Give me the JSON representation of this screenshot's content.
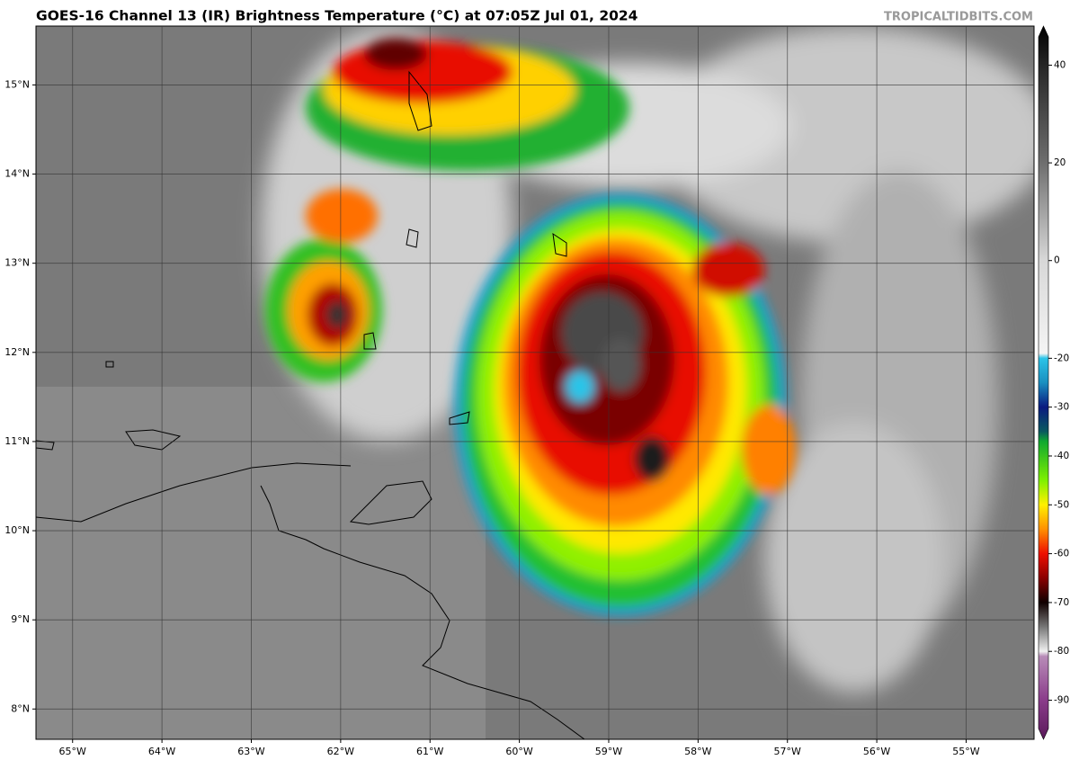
{
  "title": "GOES-16 Channel 13 (IR) Brightness Temperature (°C) at 07:05Z Jul 01, 2024",
  "watermark": "TROPICALTIDBITS.COM",
  "map": {
    "type": "map",
    "xlim": [
      -65.41,
      -54.24
    ],
    "ylim": [
      7.66,
      15.66
    ],
    "xticks": [
      {
        "value": -65,
        "label": "65°W"
      },
      {
        "value": -64,
        "label": "64°W"
      },
      {
        "value": -63,
        "label": "63°W"
      },
      {
        "value": -62,
        "label": "62°W"
      },
      {
        "value": -61,
        "label": "61°W"
      },
      {
        "value": -60,
        "label": "60°W"
      },
      {
        "value": -59,
        "label": "59°W"
      },
      {
        "value": -58,
        "label": "58°W"
      },
      {
        "value": -57,
        "label": "57°W"
      },
      {
        "value": -56,
        "label": "56°W"
      },
      {
        "value": -55,
        "label": "55°W"
      }
    ],
    "yticks": [
      {
        "value": 8,
        "label": "8°N"
      },
      {
        "value": 9,
        "label": "9°N"
      },
      {
        "value": 10,
        "label": "10°N"
      },
      {
        "value": 11,
        "label": "11°N"
      },
      {
        "value": 12,
        "label": "12°N"
      },
      {
        "value": 13,
        "label": "13°N"
      },
      {
        "value": 14,
        "label": "14°N"
      },
      {
        "value": 15,
        "label": "15°N"
      }
    ],
    "grid": true,
    "grid_color": "#333333"
  },
  "colorbar": {
    "lim": [
      -98,
      48
    ],
    "ticks": [
      40,
      20,
      0,
      -20,
      -30,
      -40,
      -50,
      -60,
      -70,
      -80,
      -90
    ],
    "stops": [
      {
        "value": 48,
        "color": "#000000"
      },
      {
        "value": 40,
        "color": "#262626"
      },
      {
        "value": 20,
        "color": "#6e6e6e"
      },
      {
        "value": 0,
        "color": "#d8d8d8"
      },
      {
        "value": -19,
        "color": "#f4f4f4"
      },
      {
        "value": -20,
        "color": "#2bc4e8"
      },
      {
        "value": -25,
        "color": "#1a8fc0"
      },
      {
        "value": -30,
        "color": "#0a1a80"
      },
      {
        "value": -35,
        "color": "#0a5a60"
      },
      {
        "value": -37,
        "color": "#10a830"
      },
      {
        "value": -45,
        "color": "#7ef000"
      },
      {
        "value": -50,
        "color": "#fff000"
      },
      {
        "value": -55,
        "color": "#ff9000"
      },
      {
        "value": -60,
        "color": "#ee1000"
      },
      {
        "value": -65,
        "color": "#8a0000"
      },
      {
        "value": -70,
        "color": "#100000"
      },
      {
        "value": -75,
        "color": "#777777"
      },
      {
        "value": -80,
        "color": "#f0f0f0"
      },
      {
        "value": -81,
        "color": "#b88cb8"
      },
      {
        "value": -90,
        "color": "#8a3c8a"
      },
      {
        "value": -98,
        "color": "#5a1a5a"
      }
    ]
  }
}
